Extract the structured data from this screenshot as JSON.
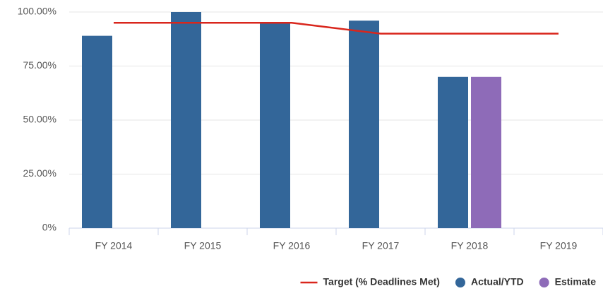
{
  "chart_data": {
    "type": "bar",
    "categories": [
      "FY 2014",
      "FY 2015",
      "FY 2016",
      "FY 2017",
      "FY 2018",
      "FY 2019"
    ],
    "series": [
      {
        "name": "Target (% Deadlines Met)",
        "type": "line",
        "color": "#d9261c",
        "values": [
          95,
          95,
          95,
          90,
          90,
          90
        ]
      },
      {
        "name": "Actual/YTD",
        "color": "#336699",
        "values": [
          89,
          100,
          95,
          96,
          70,
          null
        ]
      },
      {
        "name": "Estimate",
        "color": "#8e6bb8",
        "values": [
          null,
          null,
          null,
          null,
          70,
          null
        ]
      }
    ],
    "ylim": [
      0,
      100
    ],
    "yticks": [
      {
        "value": 0,
        "label": "0%"
      },
      {
        "value": 25,
        "label": "25.00%"
      },
      {
        "value": 50,
        "label": "50.00%"
      },
      {
        "value": 75,
        "label": "75.00%"
      },
      {
        "value": 100,
        "label": "100.00%"
      }
    ],
    "grid": true,
    "legend": "bottom-right"
  }
}
